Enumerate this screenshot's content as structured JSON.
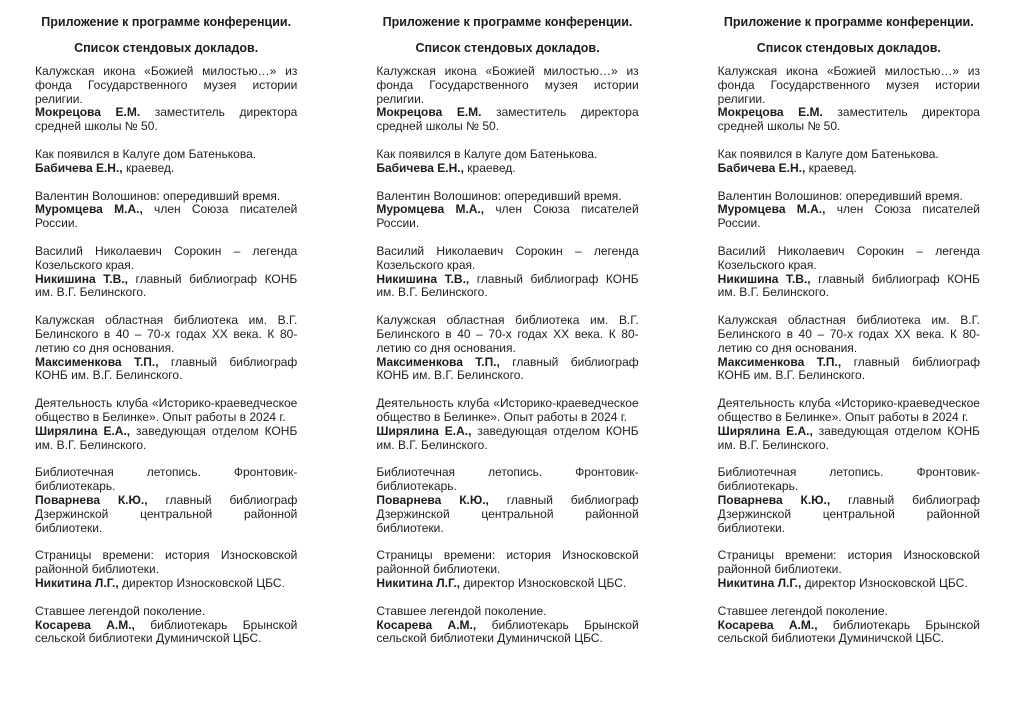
{
  "document": {
    "heading": "Приложение к программе конференции.",
    "subheading": "Список стендовых докладов.",
    "reports": [
      {
        "topic": "Калужская икона «Божией милостью…» из фонда Государственного музея истории религии.",
        "author": "Мокрецова Е.М.",
        "affiliation": " заместитель директора средней школы № 50."
      },
      {
        "topic": "Как появился в Калуге дом Батенькова.",
        "author": "Бабичева Е.Н.,",
        "affiliation": " краевед."
      },
      {
        "topic": "Валентин Волошинов: опередивший время.",
        "author": "Муромцева М.А.,",
        "affiliation": " член Союза писателей России."
      },
      {
        "topic": "Василий Николаевич Сорокин – легенда Козельского края.",
        "author": "Никишина Т.В.,",
        "affiliation": " главный библиограф КОНБ им. В.Г. Белинского."
      },
      {
        "topic": "Калужская областная библиотека им. В.Г. Белинского в 40 – 70-х годах ХХ века. К 80-летию со дня основания.",
        "author": "Максименкова Т.П.,",
        "affiliation": " главный библиограф КОНБ им. В.Г. Белинского."
      },
      {
        "topic": "Деятельность клуба «Историко-краеведческое общество в Белинке». Опыт работы в 2024 г.",
        "author": "Ширялина Е.А.,",
        "affiliation": " заведующая отделом КОНБ им. В.Г. Белинского."
      },
      {
        "topic": "Библиотечная летопись. Фронтовик-библиотекарь.",
        "author": "Поварнева К.Ю.,",
        "affiliation": " главный библиограф Дзержинской центральной районной библиотеки."
      },
      {
        "topic": "Страницы времени: история Износковской районной библиотеки.",
        "author": "Никитина Л.Г.,",
        "affiliation": " директор Износковской ЦБС."
      },
      {
        "topic": "Ставшее легендой поколение.",
        "author": "Косарева А.М.,",
        "affiliation": " библиотекарь Брынской сельской библиотеки Думиничской ЦБС."
      }
    ]
  }
}
